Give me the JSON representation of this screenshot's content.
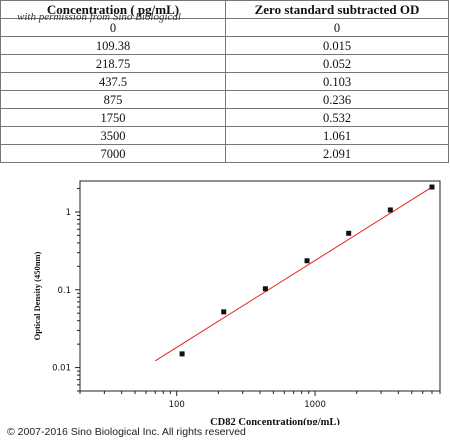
{
  "table": {
    "headers": [
      "Concentration ( pg/mL)",
      "Zero standard subtracted OD"
    ],
    "watermark": "with permission from Sino Biological",
    "rows": [
      [
        "0",
        "0"
      ],
      [
        "109.38",
        "0.015"
      ],
      [
        "218.75",
        "0.052"
      ],
      [
        "437.5",
        "0.103"
      ],
      [
        "875",
        "0.236"
      ],
      [
        "1750",
        "0.532"
      ],
      [
        "3500",
        "1.061"
      ],
      [
        "7000",
        "2.091"
      ]
    ]
  },
  "chart_data": {
    "type": "scatter",
    "xlabel": "CD82  Concentration(pg/mL)",
    "ylabel": "Optical Density (450nm)",
    "xscale": "log",
    "yscale": "log",
    "xlim": [
      20,
      8000
    ],
    "ylim": [
      0.005,
      2.5
    ],
    "xticks": [
      {
        "value": 100,
        "label": "100"
      },
      {
        "value": 1000,
        "label": "1000"
      }
    ],
    "yticks": [
      {
        "value": 0.01,
        "label": "0.01"
      },
      {
        "value": 0.1,
        "label": "0.1"
      },
      {
        "value": 1,
        "label": "1"
      }
    ],
    "points": [
      {
        "x": 109.38,
        "y": 0.015
      },
      {
        "x": 218.75,
        "y": 0.052
      },
      {
        "x": 437.5,
        "y": 0.103
      },
      {
        "x": 875,
        "y": 0.236
      },
      {
        "x": 1750,
        "y": 0.532
      },
      {
        "x": 3500,
        "y": 1.061
      },
      {
        "x": 7000,
        "y": 2.091
      }
    ],
    "fit_line": {
      "x": [
        70,
        7000
      ],
      "y": [
        0.0122,
        2.09
      ],
      "color": "#e8211d"
    },
    "grid": false
  },
  "copyright": "© 2007-2016 Sino Biological Inc. All rights reserved"
}
